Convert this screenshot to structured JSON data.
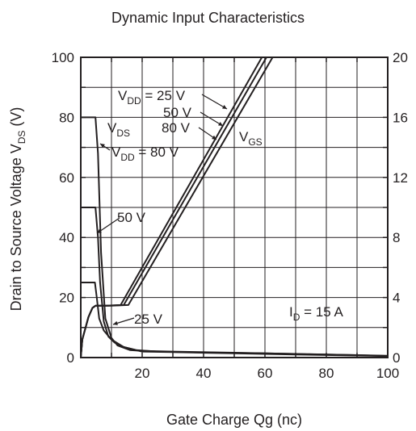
{
  "chart_data": {
    "type": "line",
    "title": "Dynamic Input Characteristics",
    "xlabel": "Gate Charge  Qg  (nc)",
    "ylabel": "Drain to Source Voltage  VDS  (V)",
    "y2label": "",
    "xlim": [
      0,
      100
    ],
    "ylim": [
      0,
      100
    ],
    "y2lim": [
      0,
      20
    ],
    "xticks": [
      "20",
      "40",
      "60",
      "80",
      "100"
    ],
    "yticks": [
      "0",
      "20",
      "40",
      "60",
      "80",
      "100"
    ],
    "y2ticks": [
      "0",
      "4",
      "8",
      "12",
      "16",
      "20"
    ],
    "grid": true,
    "series": [
      {
        "name": "VDS, VDD = 80 V",
        "axis": "left",
        "x": [
          0,
          4.8,
          5.6,
          6.6,
          8,
          10,
          12,
          16,
          20,
          30,
          50,
          70,
          90,
          100
        ],
        "y": [
          80,
          80,
          68,
          35,
          13,
          6.5,
          4,
          2.5,
          2.2,
          2,
          1.6,
          1.2,
          0.8,
          0.5
        ]
      },
      {
        "name": "VDS, VDD = 50 V",
        "axis": "left",
        "x": [
          0,
          4.8,
          5.6,
          6.3,
          7.5,
          9,
          11,
          14,
          18,
          25,
          40,
          60,
          80,
          100
        ],
        "y": [
          50,
          50,
          40,
          25,
          12,
          7,
          5,
          3.5,
          2.5,
          2,
          1.7,
          1.4,
          1,
          0.6
        ]
      },
      {
        "name": "VDS, VDD = 25 V",
        "axis": "left",
        "x": [
          0,
          4.6,
          5.2,
          6,
          7.5,
          10,
          14,
          20,
          30,
          50,
          70,
          100
        ],
        "y": [
          25,
          25,
          20,
          13,
          9,
          6,
          3.5,
          2,
          1.8,
          1.4,
          1,
          0.5
        ]
      },
      {
        "name": "VGS, VDD = 25 V",
        "axis": "right",
        "x": [
          0,
          0.5,
          2.5,
          3.8,
          4.8,
          8,
          13,
          59
        ],
        "y": [
          0,
          1.2,
          2.7,
          3.3,
          3.45,
          3.45,
          3.5,
          20
        ]
      },
      {
        "name": "VGS, VDD = 50 V",
        "axis": "right",
        "x": [
          0,
          0.5,
          2.5,
          3.8,
          4.8,
          9,
          14,
          60.5
        ],
        "y": [
          0,
          1.2,
          2.7,
          3.3,
          3.45,
          3.45,
          3.5,
          20
        ]
      },
      {
        "name": "VGS, VDD = 80 V",
        "axis": "right",
        "x": [
          0,
          0.5,
          2.5,
          3.8,
          4.8,
          10,
          15.5,
          62.5
        ],
        "y": [
          0,
          1.2,
          2.7,
          3.3,
          3.45,
          3.45,
          3.5,
          20
        ]
      }
    ],
    "annotations": {
      "vdd25": "VDD = 25 V",
      "vdd50": "50 V",
      "vdd80": "80 V",
      "vds": "VDS",
      "vdd80b": "VDD = 80  V",
      "v50": "50 V",
      "v25": "25 V",
      "vgs": "VGS",
      "id": "ID = 15 A"
    }
  }
}
